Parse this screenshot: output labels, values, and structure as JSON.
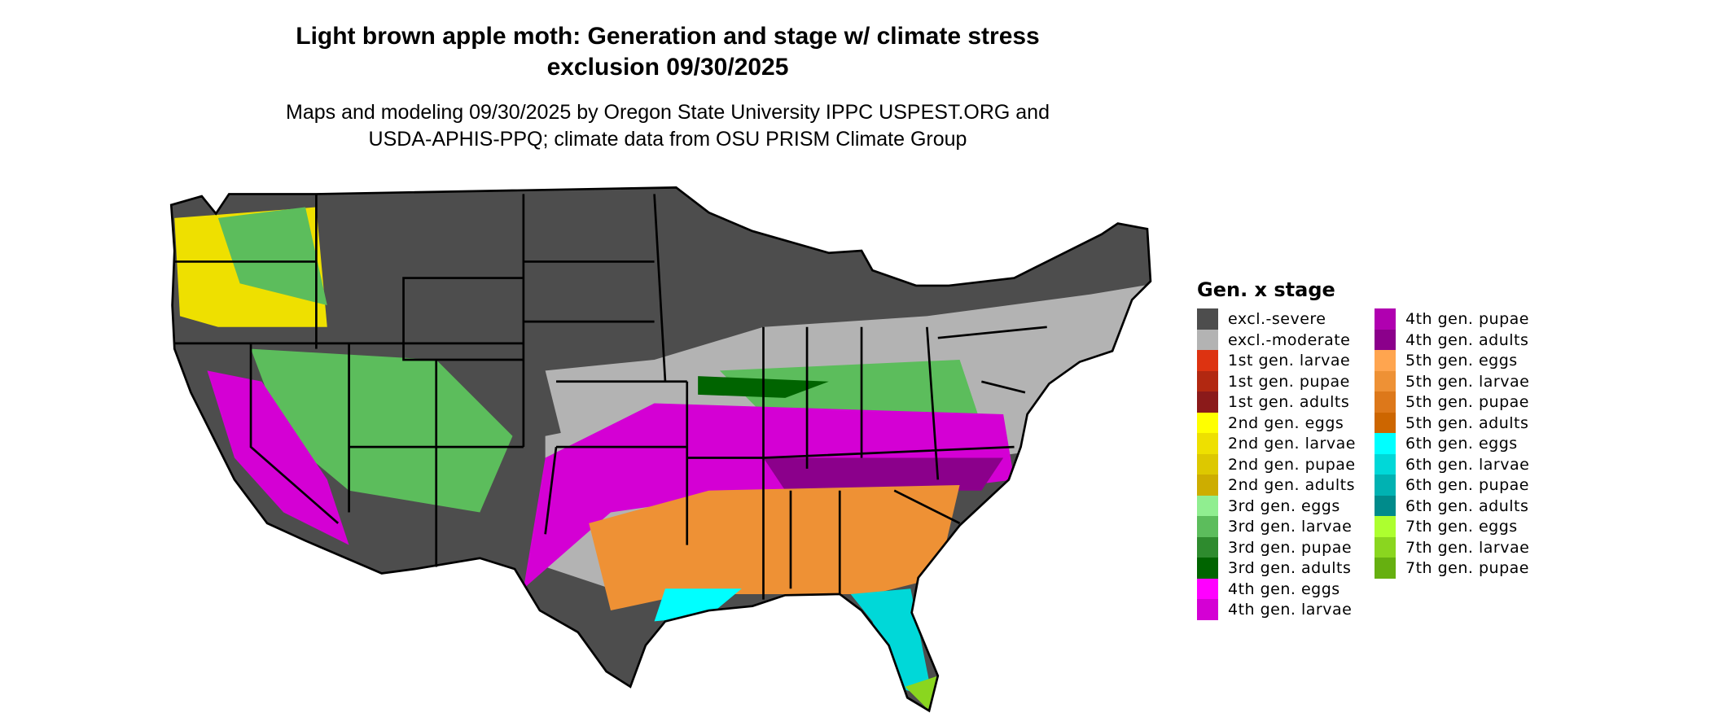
{
  "title_line1": "Light brown apple moth: Generation and stage w/ climate stress",
  "title_line2": "exclusion 09/30/2025",
  "subtitle_line1": "Maps and modeling 09/30/2025 by Oregon State University IPPC USPEST.ORG and",
  "subtitle_line2": "USDA-APHIS-PPQ; climate data from OSU PRISM Climate Group",
  "chart_data": {
    "type": "map",
    "title": "Light brown apple moth: Generation and stage w/ climate stress exclusion 09/30/2025",
    "region": "Contiguous United States",
    "legend_title": "Gen. x stage",
    "legend_placement": "right",
    "categories": [
      {
        "label": "excl.-severe",
        "color": "#4d4d4d"
      },
      {
        "label": "excl.-moderate",
        "color": "#b3b3b3"
      },
      {
        "label": "1st gen. larvae",
        "color": "#dd3311"
      },
      {
        "label": "1st gen. pupae",
        "color": "#b22811"
      },
      {
        "label": "1st gen. adults",
        "color": "#8b1a1a"
      },
      {
        "label": "2nd gen. eggs",
        "color": "#ffff00"
      },
      {
        "label": "2nd gen. larvae",
        "color": "#eee000"
      },
      {
        "label": "2nd gen. pupae",
        "color": "#ddc800"
      },
      {
        "label": "2nd gen. adults",
        "color": "#cdad00"
      },
      {
        "label": "3rd gen. eggs",
        "color": "#90ee90"
      },
      {
        "label": "3rd gen. larvae",
        "color": "#5cbd5c"
      },
      {
        "label": "3rd gen. pupae",
        "color": "#2e8b2e"
      },
      {
        "label": "3rd gen. adults",
        "color": "#006400"
      },
      {
        "label": "4th gen. eggs",
        "color": "#ff00ff"
      },
      {
        "label": "4th gen. larvae",
        "color": "#d400d4"
      },
      {
        "label": "4th gen. pupae",
        "color": "#b000b0"
      },
      {
        "label": "4th gen. adults",
        "color": "#8b008b"
      },
      {
        "label": "5th gen. eggs",
        "color": "#ffa54f"
      },
      {
        "label": "5th gen. larvae",
        "color": "#ee9135"
      },
      {
        "label": "5th gen. pupae",
        "color": "#dd781a"
      },
      {
        "label": "5th gen. adults",
        "color": "#cd6600"
      },
      {
        "label": "6th gen. eggs",
        "color": "#00ffff"
      },
      {
        "label": "6th gen. larvae",
        "color": "#00d8d8"
      },
      {
        "label": "6th gen. pupae",
        "color": "#00b2b2"
      },
      {
        "label": "6th gen. adults",
        "color": "#008b8b"
      },
      {
        "label": "7th gen. eggs",
        "color": "#adff2f"
      },
      {
        "label": "7th gen. larvae",
        "color": "#8ad61f"
      },
      {
        "label": "7th gen. pupae",
        "color": "#66b010"
      }
    ]
  }
}
